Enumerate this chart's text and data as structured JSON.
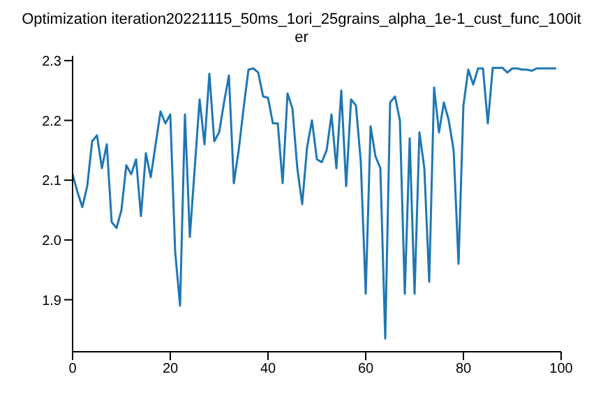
{
  "chart_data": {
    "type": "line",
    "title": "Optimization iteration20221115_50ms_1ori_25grains_alpha_1e-1_cust_func_100iter",
    "x": [
      0,
      1,
      2,
      3,
      4,
      5,
      6,
      7,
      8,
      9,
      10,
      11,
      12,
      13,
      14,
      15,
      16,
      17,
      18,
      19,
      20,
      21,
      22,
      23,
      24,
      25,
      26,
      27,
      28,
      29,
      30,
      31,
      32,
      33,
      34,
      35,
      36,
      37,
      38,
      39,
      40,
      41,
      42,
      43,
      44,
      45,
      46,
      47,
      48,
      49,
      50,
      51,
      52,
      53,
      54,
      55,
      56,
      57,
      58,
      59,
      60,
      61,
      62,
      63,
      64,
      65,
      66,
      67,
      68,
      69,
      70,
      71,
      72,
      73,
      74,
      75,
      76,
      77,
      78,
      79,
      80,
      81,
      82,
      83,
      84,
      85,
      86,
      87,
      88,
      89,
      90,
      91,
      92,
      93,
      94,
      95,
      96,
      97,
      98,
      99
    ],
    "series": [
      {
        "color": "#1f77b4",
        "values": [
          2.11,
          2.08,
          2.055,
          2.09,
          2.165,
          2.175,
          2.12,
          2.16,
          2.03,
          2.02,
          2.05,
          2.125,
          2.11,
          2.135,
          2.04,
          2.145,
          2.105,
          2.16,
          2.215,
          2.195,
          2.21,
          1.98,
          1.89,
          2.21,
          2.005,
          2.12,
          2.235,
          2.16,
          2.278,
          2.165,
          2.18,
          2.23,
          2.275,
          2.095,
          2.15,
          2.22,
          2.285,
          2.287,
          2.28,
          2.24,
          2.238,
          2.195,
          2.195,
          2.095,
          2.245,
          2.22,
          2.12,
          2.06,
          2.155,
          2.2,
          2.135,
          2.13,
          2.15,
          2.21,
          2.12,
          2.25,
          2.09,
          2.235,
          2.225,
          2.13,
          1.91,
          2.19,
          2.14,
          2.12,
          1.835,
          2.23,
          2.24,
          2.2,
          1.91,
          2.17,
          1.91,
          2.18,
          2.12,
          1.93,
          2.255,
          2.18,
          2.23,
          2.2,
          2.15,
          1.96,
          2.225,
          2.285,
          2.26,
          2.287,
          2.287,
          2.195,
          2.288,
          2.288,
          2.288,
          2.28,
          2.287,
          2.287,
          2.285,
          2.285,
          2.283,
          2.287,
          2.287,
          2.287,
          2.287,
          2.287
        ]
      }
    ],
    "xlim": [
      0,
      100
    ],
    "xticks": [
      0,
      20,
      40,
      60,
      80,
      100
    ],
    "ylim": [
      1.813,
      2.308
    ],
    "yticks": [
      1.9,
      {
        "value": 2,
        "label": "2.0"
      },
      2.1,
      2.2,
      2.3
    ],
    "grid": false,
    "legend": false,
    "marker": "none",
    "line_style": "solid"
  }
}
